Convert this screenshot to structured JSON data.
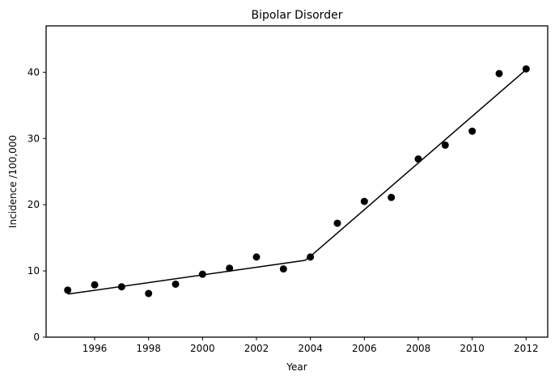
{
  "chart_data": {
    "type": "scatter",
    "title": "Bipolar Disorder",
    "xlabel": "Year",
    "ylabel": "Incidence /100,000",
    "xlim": [
      1994.2,
      2012.8
    ],
    "ylim": [
      0,
      47
    ],
    "x_ticks": [
      1996,
      1998,
      2000,
      2002,
      2004,
      2006,
      2008,
      2010,
      2012
    ],
    "y_ticks": [
      0,
      10,
      20,
      30,
      40
    ],
    "grid": false,
    "legend": "none",
    "series": [
      {
        "type": "scatter",
        "color": "#000000",
        "points": [
          [
            1995,
            7.1
          ],
          [
            1996,
            7.9
          ],
          [
            1997,
            7.6
          ],
          [
            1998,
            6.6
          ],
          [
            1999,
            8.0
          ],
          [
            2000,
            9.5
          ],
          [
            2001,
            10.4
          ],
          [
            2002,
            12.1
          ],
          [
            2003,
            10.3
          ],
          [
            2004,
            12.1
          ],
          [
            2005,
            17.2
          ],
          [
            2006,
            20.5
          ],
          [
            2007,
            21.1
          ],
          [
            2008,
            26.9
          ],
          [
            2009,
            29.0
          ],
          [
            2010,
            31.1
          ],
          [
            2011,
            39.8
          ],
          [
            2012,
            40.5
          ]
        ]
      },
      {
        "type": "line",
        "color": "#000000",
        "points": [
          [
            1995,
            6.5
          ],
          [
            2003.8,
            11.6
          ],
          [
            2004,
            12.2
          ],
          [
            2012,
            40.4
          ]
        ]
      }
    ]
  }
}
